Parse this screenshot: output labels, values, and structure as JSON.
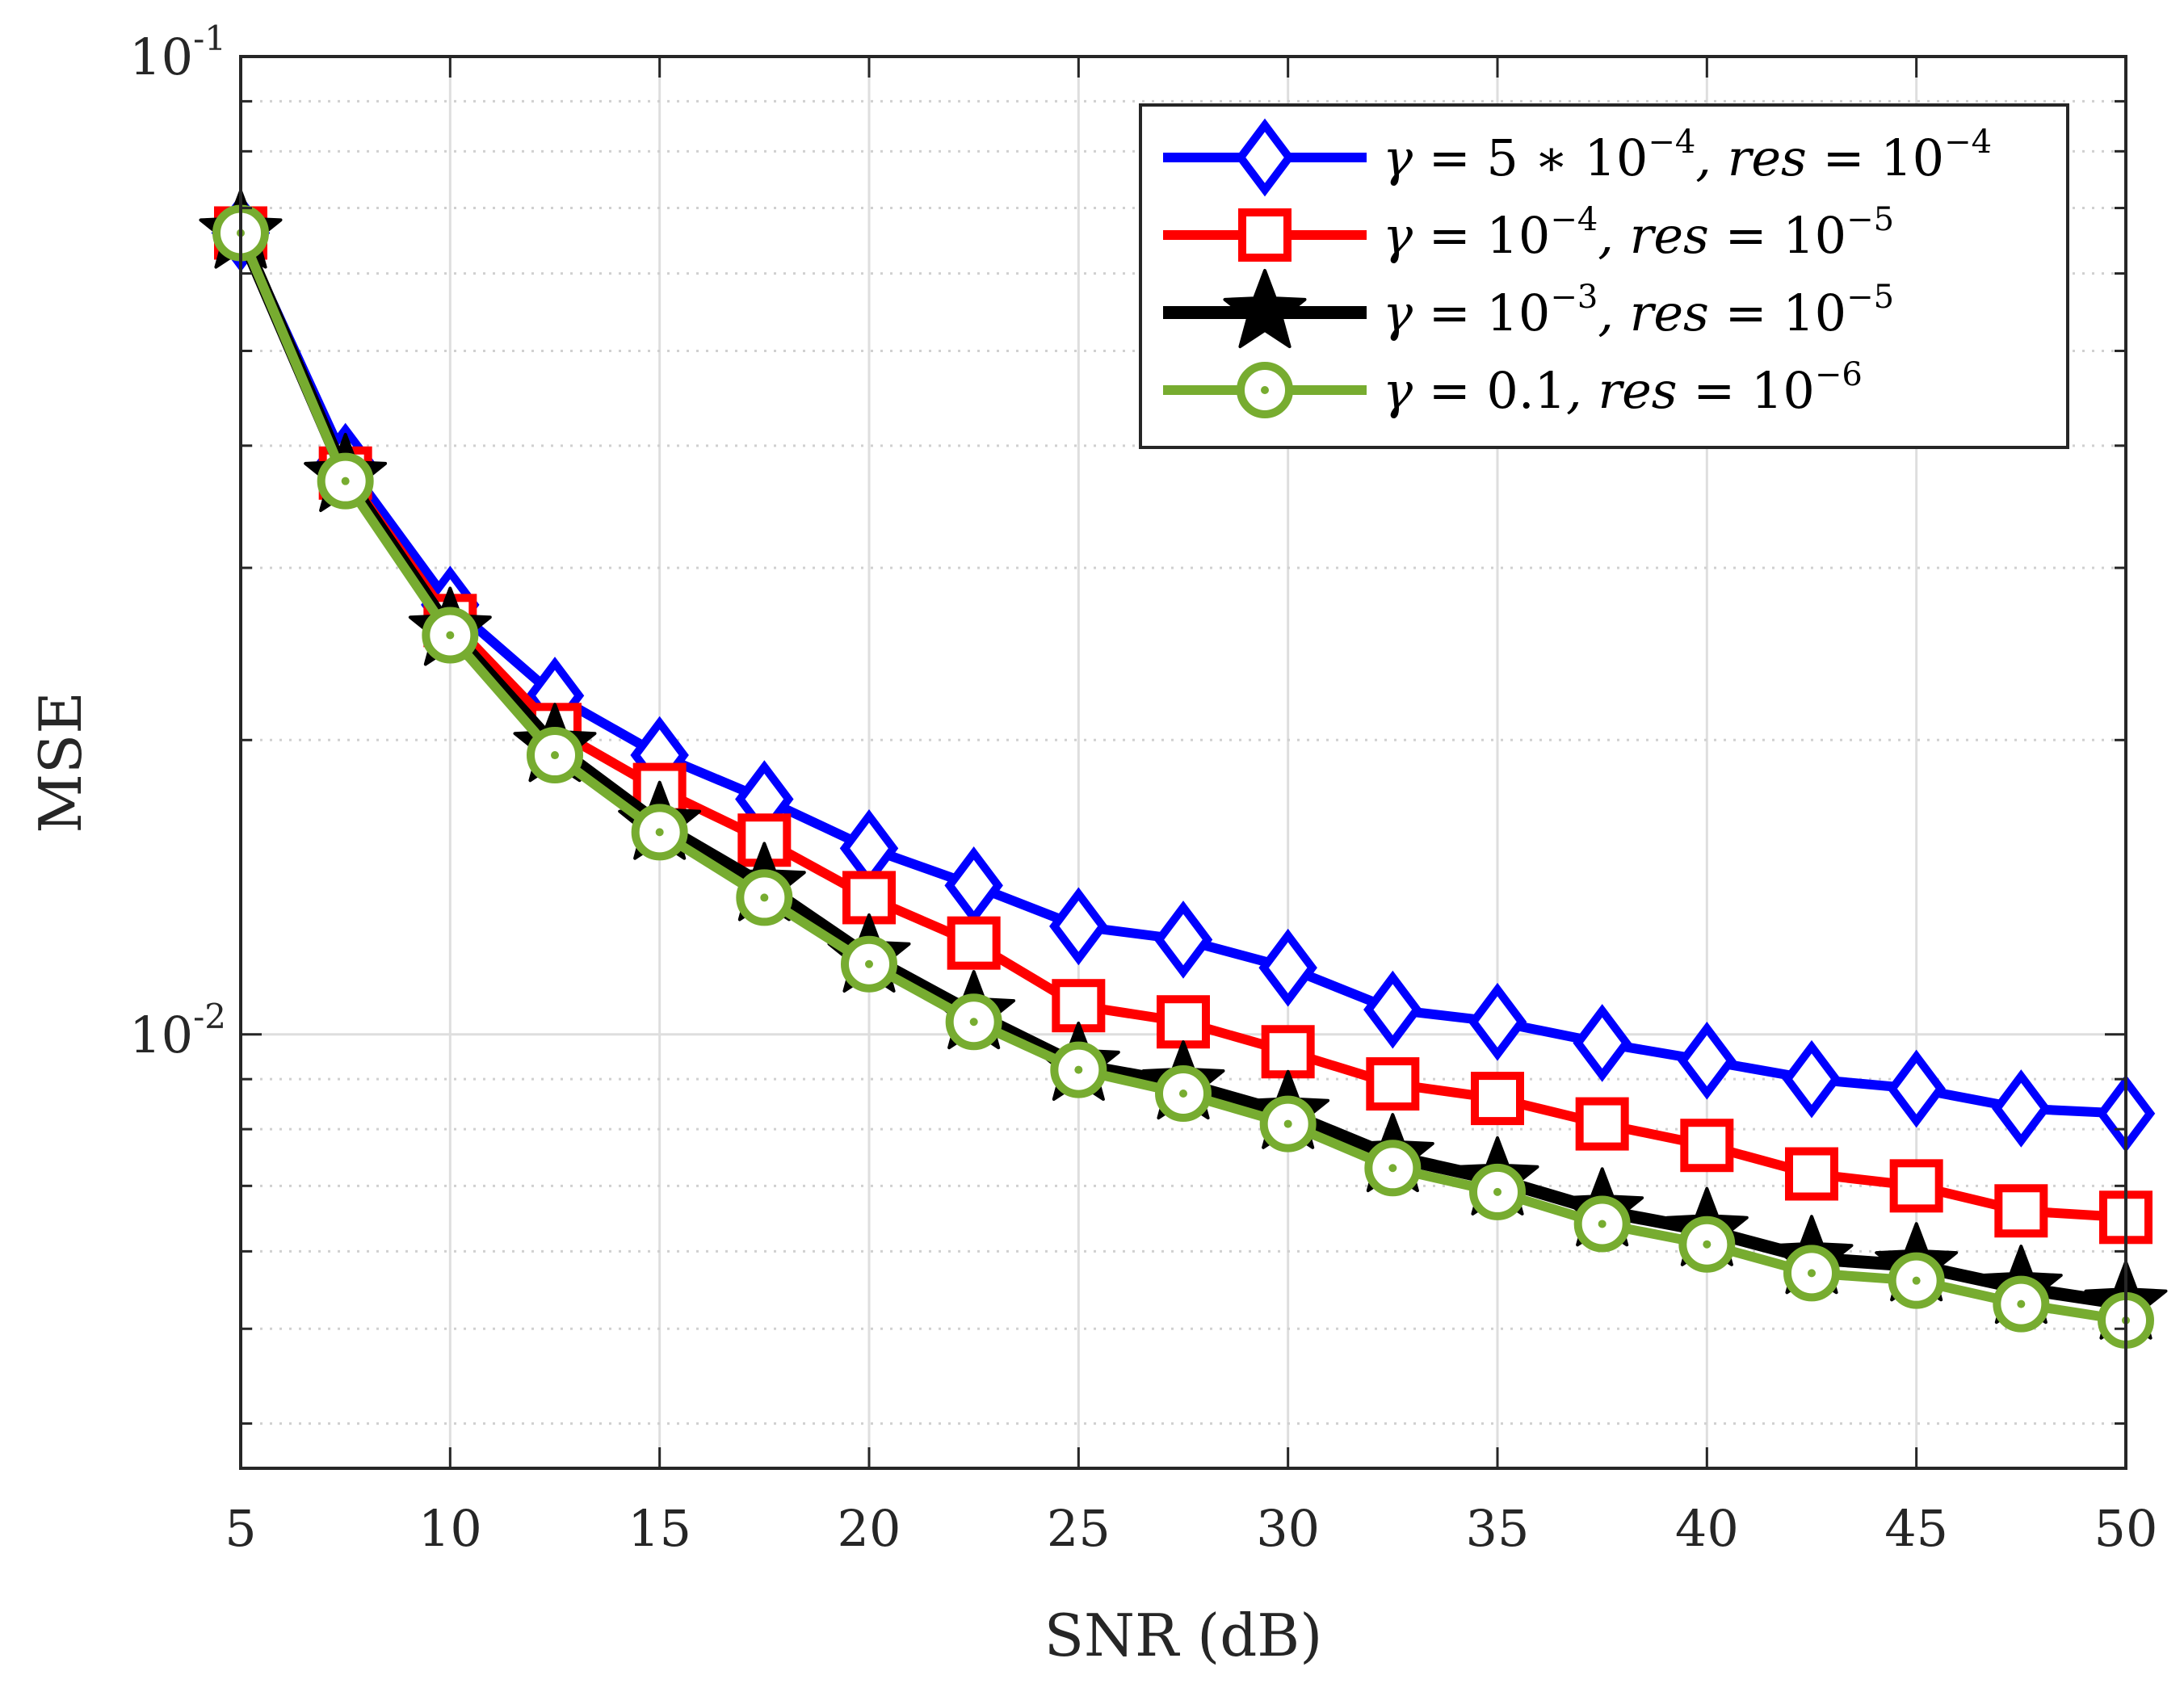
{
  "chart_data": {
    "type": "line",
    "title": "",
    "xlabel": "SNR (dB)",
    "ylabel": "MSE",
    "xlim": [
      5,
      50
    ],
    "ylim": [
      0.0036,
      0.1
    ],
    "yscale": "log",
    "grid": true,
    "legend_position": "top-right",
    "x": [
      5,
      7.5,
      10,
      12.5,
      15,
      17.5,
      20,
      22.5,
      25,
      27.5,
      30,
      32.5,
      35,
      37.5,
      40,
      42.5,
      45,
      47.5,
      50
    ],
    "x_ticks": [
      5,
      10,
      15,
      20,
      25,
      30,
      35,
      40,
      45,
      50
    ],
    "x_tick_labels": [
      "5",
      "10",
      "15",
      "20",
      "25",
      "30",
      "35",
      "40",
      "45",
      "50"
    ],
    "y_ticks": [
      0.1,
      0.01
    ],
    "y_tick_labels": [
      {
        "base": "10",
        "exp": "-1"
      },
      {
        "base": "10",
        "exp": "-2"
      }
    ],
    "series": [
      {
        "name": "γ = 5 * 10^-4, res = 10^-4",
        "legend": [
          {
            "t": "γ",
            "c": ""
          },
          {
            "t": " = 5 ∗ 10",
            "c": "rm"
          },
          {
            "t": "−4",
            "c": "up"
          },
          {
            "t": ", res",
            "c": ""
          },
          {
            "t": " = 10",
            "c": "rm"
          },
          {
            "t": "−4",
            "c": "up"
          }
        ],
        "color": "#0000ff",
        "marker": "diamond",
        "values": [
          0.066,
          0.0385,
          0.0275,
          0.0222,
          0.0193,
          0.0174,
          0.0155,
          0.0142,
          0.0129,
          0.0125,
          0.0117,
          0.0106,
          0.0103,
          0.0098,
          0.0094,
          0.009,
          0.0088,
          0.0084,
          0.0083
        ]
      },
      {
        "name": "γ = 10^-4, res = 10^-5",
        "legend": [
          {
            "t": "γ",
            "c": ""
          },
          {
            "t": " = 10",
            "c": "rm"
          },
          {
            "t": "−4",
            "c": "up"
          },
          {
            "t": ", res",
            "c": ""
          },
          {
            "t": " = 10",
            "c": "rm"
          },
          {
            "t": "−5",
            "c": "up"
          }
        ],
        "color": "#ff0000",
        "marker": "square",
        "values": [
          0.066,
          0.0375,
          0.0265,
          0.0205,
          0.0178,
          0.0158,
          0.0138,
          0.0124,
          0.0107,
          0.0103,
          0.0096,
          0.0089,
          0.0086,
          0.0081,
          0.0077,
          0.0072,
          0.007,
          0.0066,
          0.0065
        ]
      },
      {
        "name": "γ = 10^-3, res = 10^-5",
        "legend": [
          {
            "t": "γ",
            "c": ""
          },
          {
            "t": " = 10",
            "c": "rm"
          },
          {
            "t": "−3",
            "c": "up"
          },
          {
            "t": ", res",
            "c": ""
          },
          {
            "t": " = 10",
            "c": "rm"
          },
          {
            "t": "−5",
            "c": "up"
          }
        ],
        "color": "#000000",
        "marker": "star",
        "values": [
          0.066,
          0.0372,
          0.0259,
          0.0197,
          0.0164,
          0.0142,
          0.012,
          0.0105,
          0.0093,
          0.0089,
          0.0083,
          0.0075,
          0.0071,
          0.0066,
          0.0063,
          0.0059,
          0.0058,
          0.0055,
          0.0053
        ]
      },
      {
        "name": "γ = 0.1, res = 10^-6",
        "legend": [
          {
            "t": "γ",
            "c": ""
          },
          {
            "t": " = 0.1",
            "c": "rm"
          },
          {
            "t": ", res",
            "c": ""
          },
          {
            "t": " = 10",
            "c": "rm"
          },
          {
            "t": "−6",
            "c": "up"
          }
        ],
        "color": "#77ac30",
        "marker": "circle",
        "values": [
          0.066,
          0.0368,
          0.0256,
          0.0193,
          0.0161,
          0.0138,
          0.0118,
          0.0103,
          0.0092,
          0.0087,
          0.0081,
          0.0073,
          0.0069,
          0.0064,
          0.0061,
          0.0057,
          0.0056,
          0.0053,
          0.0051
        ]
      }
    ]
  }
}
